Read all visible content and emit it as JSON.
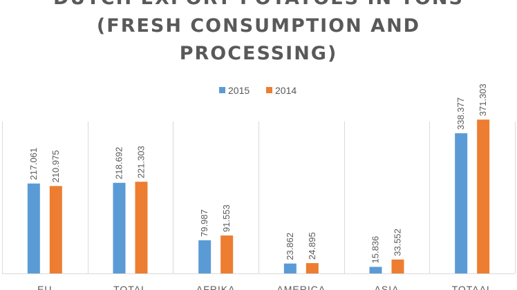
{
  "chart_data": {
    "type": "bar",
    "title": [
      "DUTCH EXPORT POTATOES IN TONS",
      "(FRESH CONSUMPTION AND",
      "PROCESSING)"
    ],
    "categories": [
      "EU",
      "TOTAL",
      "AFRIKA",
      "AMERICA",
      "ASIA",
      "TOTAAL"
    ],
    "series": [
      {
        "name": "2015",
        "color": "#5B9BD5",
        "values": [
          217.061,
          218.692,
          79.987,
          23.862,
          15.836,
          338.377
        ],
        "labels": [
          "217.061",
          "218.692",
          "79.987",
          "23.862",
          "15.836",
          "338.377"
        ]
      },
      {
        "name": "2014",
        "color": "#ED7D31",
        "values": [
          210.975,
          221.303,
          91.553,
          24.895,
          33.552,
          371.303
        ],
        "labels": [
          "210.975",
          "221.303",
          "91.553",
          "24.895",
          "33.552",
          "371.303"
        ]
      }
    ],
    "xlabel": "",
    "ylabel": "",
    "ylim": [
      0,
      400
    ],
    "grid": "vertical separators",
    "legend": "top-center"
  }
}
